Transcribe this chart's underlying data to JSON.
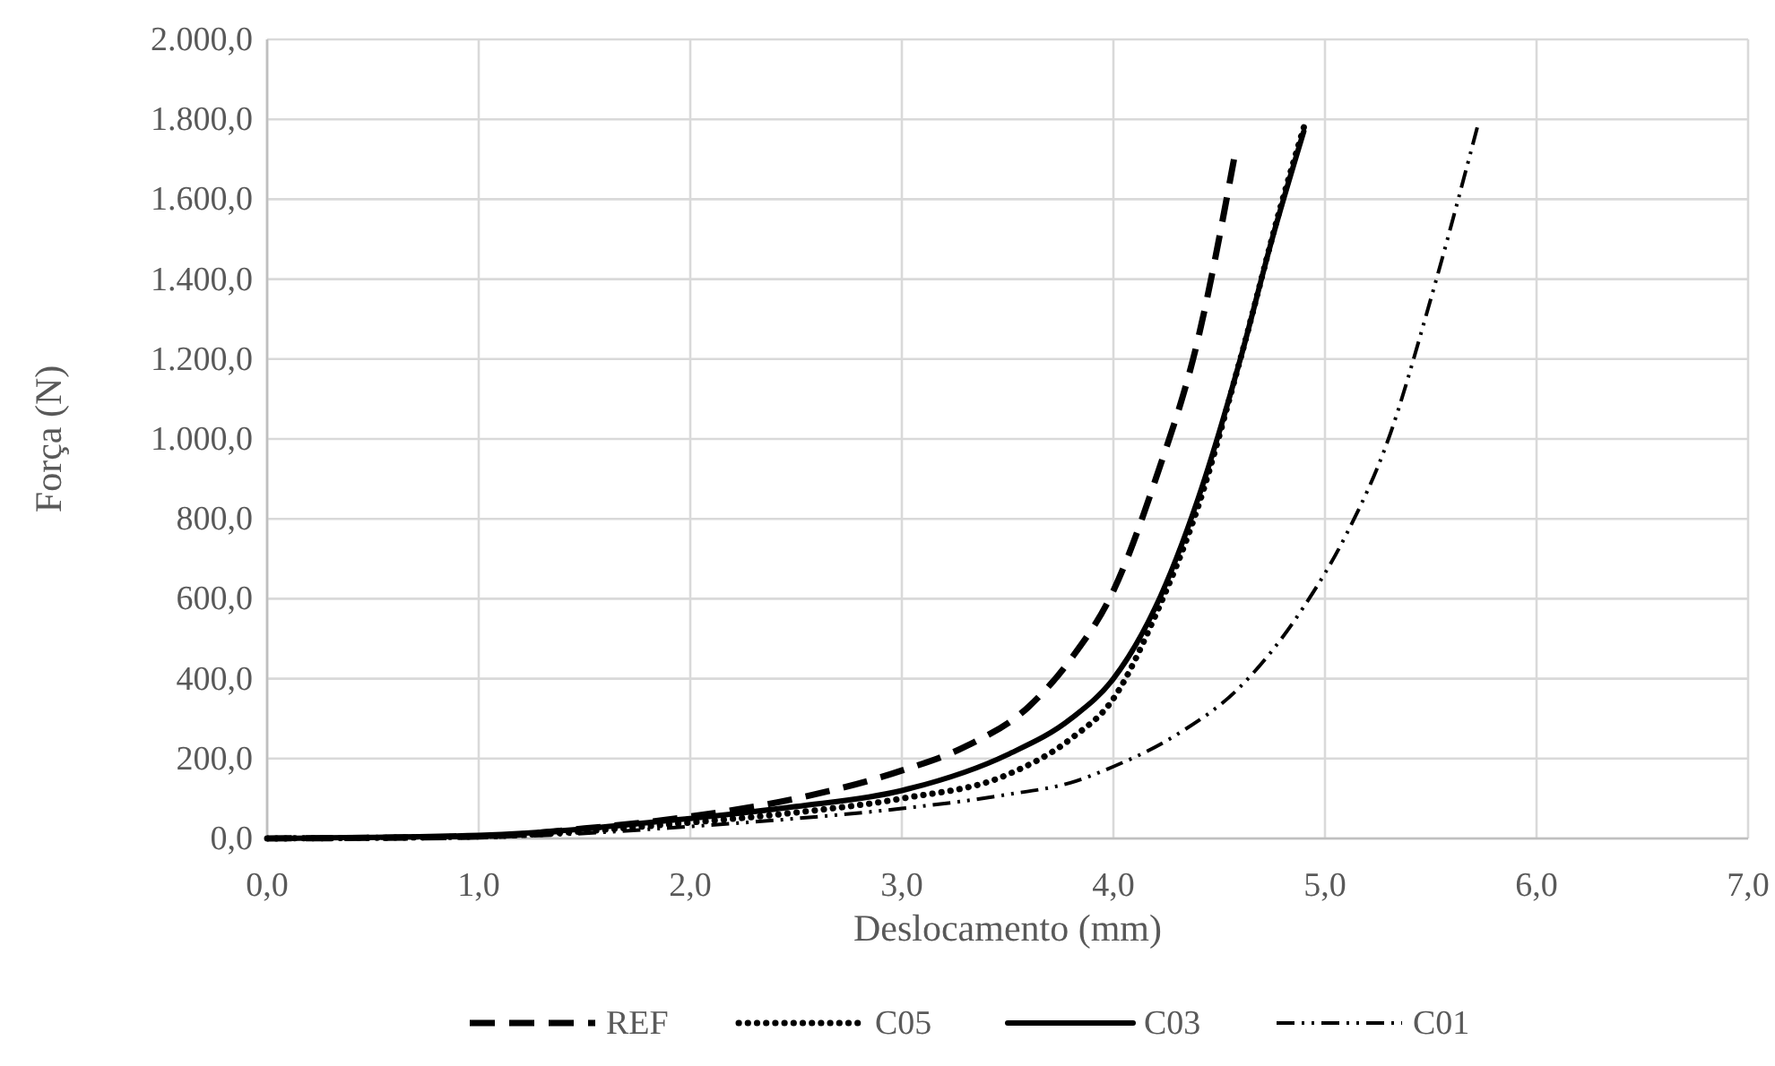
{
  "chart_data": {
    "type": "line",
    "xlabel": "Deslocamento (mm)",
    "ylabel": "Força (N)",
    "xlim": [
      0,
      7
    ],
    "ylim": [
      0,
      2000
    ],
    "xticks": [
      {
        "value": 0,
        "label": "0,0"
      },
      {
        "value": 1,
        "label": "1,0"
      },
      {
        "value": 2,
        "label": "2,0"
      },
      {
        "value": 3,
        "label": "3,0"
      },
      {
        "value": 4,
        "label": "4,0"
      },
      {
        "value": 5,
        "label": "5,0"
      },
      {
        "value": 6,
        "label": "6,0"
      },
      {
        "value": 7,
        "label": "7,0"
      }
    ],
    "yticks": [
      {
        "value": 0,
        "label": "0,0"
      },
      {
        "value": 200,
        "label": "200,0"
      },
      {
        "value": 400,
        "label": "400,0"
      },
      {
        "value": 600,
        "label": "600,0"
      },
      {
        "value": 800,
        "label": "800,0"
      },
      {
        "value": 1000,
        "label": "1.000,0"
      },
      {
        "value": 1200,
        "label": "1.200,0"
      },
      {
        "value": 1400,
        "label": "1.400,0"
      },
      {
        "value": 1600,
        "label": "1.600,0"
      },
      {
        "value": 1800,
        "label": "1.800,0"
      },
      {
        "value": 2000,
        "label": "2.000,0"
      }
    ],
    "grid": true,
    "legend": "bottom",
    "marker": "none",
    "series": [
      {
        "name": "REF",
        "color": "#000000",
        "line_style": "dashed",
        "x": [
          0,
          1,
          1.5,
          2,
          2.5,
          3,
          3.3,
          3.6,
          3.8,
          4.0,
          4.2,
          4.4,
          4.57
        ],
        "values": [
          0,
          5,
          25,
          55,
          100,
          170,
          230,
          330,
          450,
          620,
          900,
          1250,
          1700
        ]
      },
      {
        "name": "C05",
        "color": "#000000",
        "line_style": "dotted",
        "x": [
          0,
          1,
          2,
          2.5,
          3,
          3.5,
          3.8,
          4.0,
          4.2,
          4.4,
          4.6,
          4.8,
          4.9
        ],
        "values": [
          0,
          5,
          40,
          65,
          100,
          160,
          250,
          350,
          560,
          830,
          1200,
          1600,
          1780
        ]
      },
      {
        "name": "C03",
        "color": "#000000",
        "line_style": "solid",
        "x": [
          0,
          1,
          2,
          2.5,
          3,
          3.5,
          3.8,
          4.0,
          4.2,
          4.4,
          4.6,
          4.75,
          4.9
        ],
        "values": [
          0,
          8,
          50,
          80,
          120,
          210,
          300,
          400,
          580,
          850,
          1200,
          1500,
          1770
        ]
      },
      {
        "name": "C01",
        "color": "#000000",
        "line_style": "dashdotdot",
        "x": [
          0,
          1,
          2,
          2.5,
          3,
          3.5,
          3.8,
          4.0,
          4.3,
          4.6,
          4.9,
          5.1,
          5.3,
          5.5,
          5.72
        ],
        "values": [
          0,
          3,
          30,
          50,
          75,
          110,
          140,
          180,
          260,
          380,
          580,
          760,
          1000,
          1350,
          1780
        ]
      }
    ]
  }
}
